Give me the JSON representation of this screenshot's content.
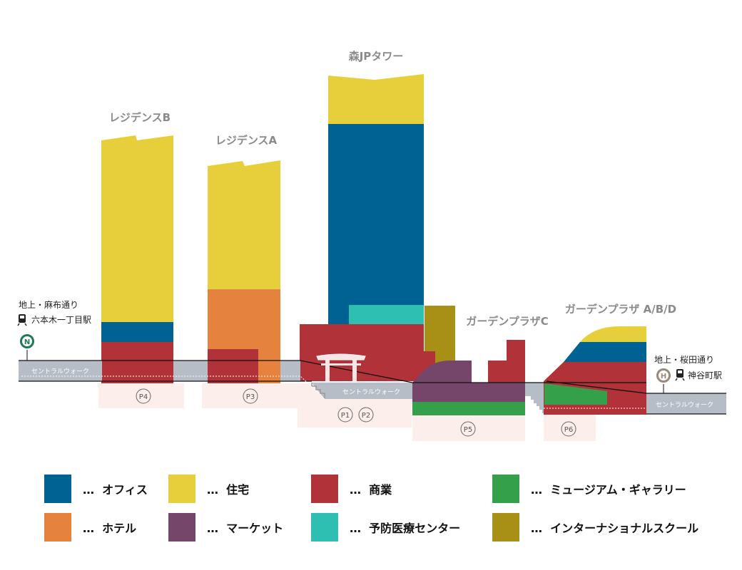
{
  "colors": {
    "office": "#006193",
    "residential": "#e7cf3b",
    "commercial": "#b13238",
    "museum": "#34a04a",
    "hotel": "#e5823d",
    "market": "#754669",
    "clinic": "#2fbeb2",
    "school": "#a89016",
    "walkway": "#b7bdc7",
    "parking": "#fcefeb",
    "sign_north": "#1d7a55",
    "sign_south": "#9a8a7a"
  },
  "buildings": {
    "residence_b": "レジデンスB",
    "residence_a": "レジデンスA",
    "mori_jp_tower": "森JPタワー",
    "garden_plaza_c": "ガーデンプラザC",
    "garden_plaza_abd": "ガーデンプラザ A/B/D"
  },
  "walkway": {
    "label_left": "セントラルウォーク",
    "label_center": "セントラルウォーク",
    "label_right": "セントラルウォーク"
  },
  "streets": {
    "left_line1": "地上・麻布通り",
    "left_line2": "六本木一丁目駅",
    "left_badge": "N",
    "right_line1": "地上・桜田通り",
    "right_line2": "神谷町駅",
    "right_badge": "H"
  },
  "parking": {
    "p4": "P4",
    "p3": "P3",
    "p1": "P1",
    "p2": "P2",
    "p5": "P5",
    "p6": "P6"
  },
  "legend": {
    "prefix": "…",
    "items": [
      {
        "key": "office",
        "label": "オフィス"
      },
      {
        "key": "residential",
        "label": "住宅"
      },
      {
        "key": "commercial",
        "label": "商業"
      },
      {
        "key": "museum",
        "label": "ミュージアム・ギャラリー"
      },
      {
        "key": "hotel",
        "label": "ホテル"
      },
      {
        "key": "market",
        "label": "マーケット"
      },
      {
        "key": "clinic",
        "label": "予防医療センター"
      },
      {
        "key": "school",
        "label": "インターナショナルスクール"
      }
    ]
  }
}
